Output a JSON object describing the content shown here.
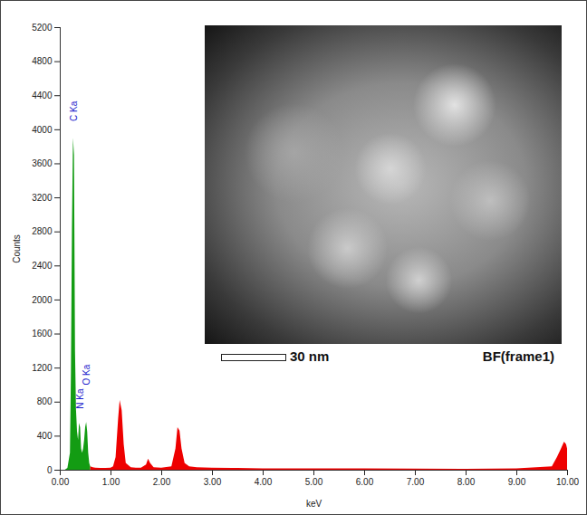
{
  "chart_data": {
    "type": "area",
    "x_label": "keV",
    "y_label": "Counts",
    "x": [
      0.1,
      0.15,
      0.2,
      0.22,
      0.24,
      0.26,
      0.28,
      0.3,
      0.32,
      0.34,
      0.36,
      0.38,
      0.4,
      0.42,
      0.44,
      0.46,
      0.48,
      0.5,
      0.52,
      0.54,
      0.56,
      0.58,
      0.6,
      0.65,
      0.7,
      0.8,
      0.9,
      1.0,
      1.05,
      1.1,
      1.15,
      1.18,
      1.22,
      1.26,
      1.3,
      1.4,
      1.5,
      1.6,
      1.7,
      1.74,
      1.78,
      1.85,
      2.0,
      2.2,
      2.28,
      2.32,
      2.36,
      2.4,
      2.46,
      2.55,
      2.7,
      3.0,
      3.5,
      4.0,
      5.0,
      6.0,
      7.0,
      8.0,
      9.0,
      9.7,
      9.8,
      9.88,
      9.94,
      9.98,
      10.0
    ],
    "series": [
      {
        "color": "#139c13",
        "values": [
          0,
          20,
          200,
          1150,
          2850,
          3900,
          3700,
          1400,
          700,
          450,
          350,
          550,
          500,
          250,
          200,
          250,
          350,
          500,
          560,
          450,
          200,
          80,
          40,
          null,
          null,
          null,
          null,
          null,
          null,
          null,
          null,
          null,
          null,
          null,
          null,
          null,
          null,
          null,
          null,
          null,
          null,
          null,
          null,
          null,
          null,
          null,
          null,
          null,
          null,
          null,
          null,
          null,
          null,
          null,
          null,
          null,
          null,
          null,
          null,
          null,
          null,
          null,
          null,
          null,
          null
        ]
      },
      {
        "color": "#ee0000",
        "values": [
          null,
          null,
          null,
          null,
          null,
          null,
          null,
          null,
          null,
          null,
          null,
          null,
          null,
          null,
          null,
          null,
          null,
          null,
          null,
          null,
          null,
          null,
          40,
          30,
          25,
          20,
          20,
          25,
          40,
          150,
          600,
          820,
          700,
          300,
          80,
          30,
          25,
          25,
          60,
          130,
          80,
          30,
          25,
          40,
          250,
          500,
          460,
          250,
          80,
          40,
          30,
          25,
          20,
          15,
          15,
          15,
          12,
          10,
          15,
          40,
          150,
          250,
          330,
          300,
          250
        ]
      }
    ],
    "annotations": [
      {
        "text": "C Ka",
        "x": 0.277,
        "y": 4100
      },
      {
        "text": "N Ka",
        "x": 0.392,
        "y": 720
      },
      {
        "text": "O Ka",
        "x": 0.525,
        "y": 1000
      }
    ],
    "xlim": [
      0,
      10
    ],
    "xticks": [
      {
        "value": 0,
        "label": "0.00"
      },
      {
        "value": 1,
        "label": "1.00"
      },
      {
        "value": 2,
        "label": "2.00"
      },
      {
        "value": 3,
        "label": "3.00"
      },
      {
        "value": 4,
        "label": "4.00"
      },
      {
        "value": 5,
        "label": "5.00"
      },
      {
        "value": 6,
        "label": "6.00"
      },
      {
        "value": 7,
        "label": "7.00"
      },
      {
        "value": 8,
        "label": "8.00"
      },
      {
        "value": 9,
        "label": "9.00"
      },
      {
        "value": 10,
        "label": "10.00"
      }
    ],
    "ylim": [
      0,
      5200
    ],
    "yticks": [
      0,
      400,
      800,
      1200,
      1600,
      2000,
      2400,
      2800,
      3200,
      3600,
      4000,
      4400,
      4800,
      5200
    ],
    "grid": false,
    "inset": {
      "scale_bar": "30 nm",
      "label": "BF(frame1)"
    }
  }
}
